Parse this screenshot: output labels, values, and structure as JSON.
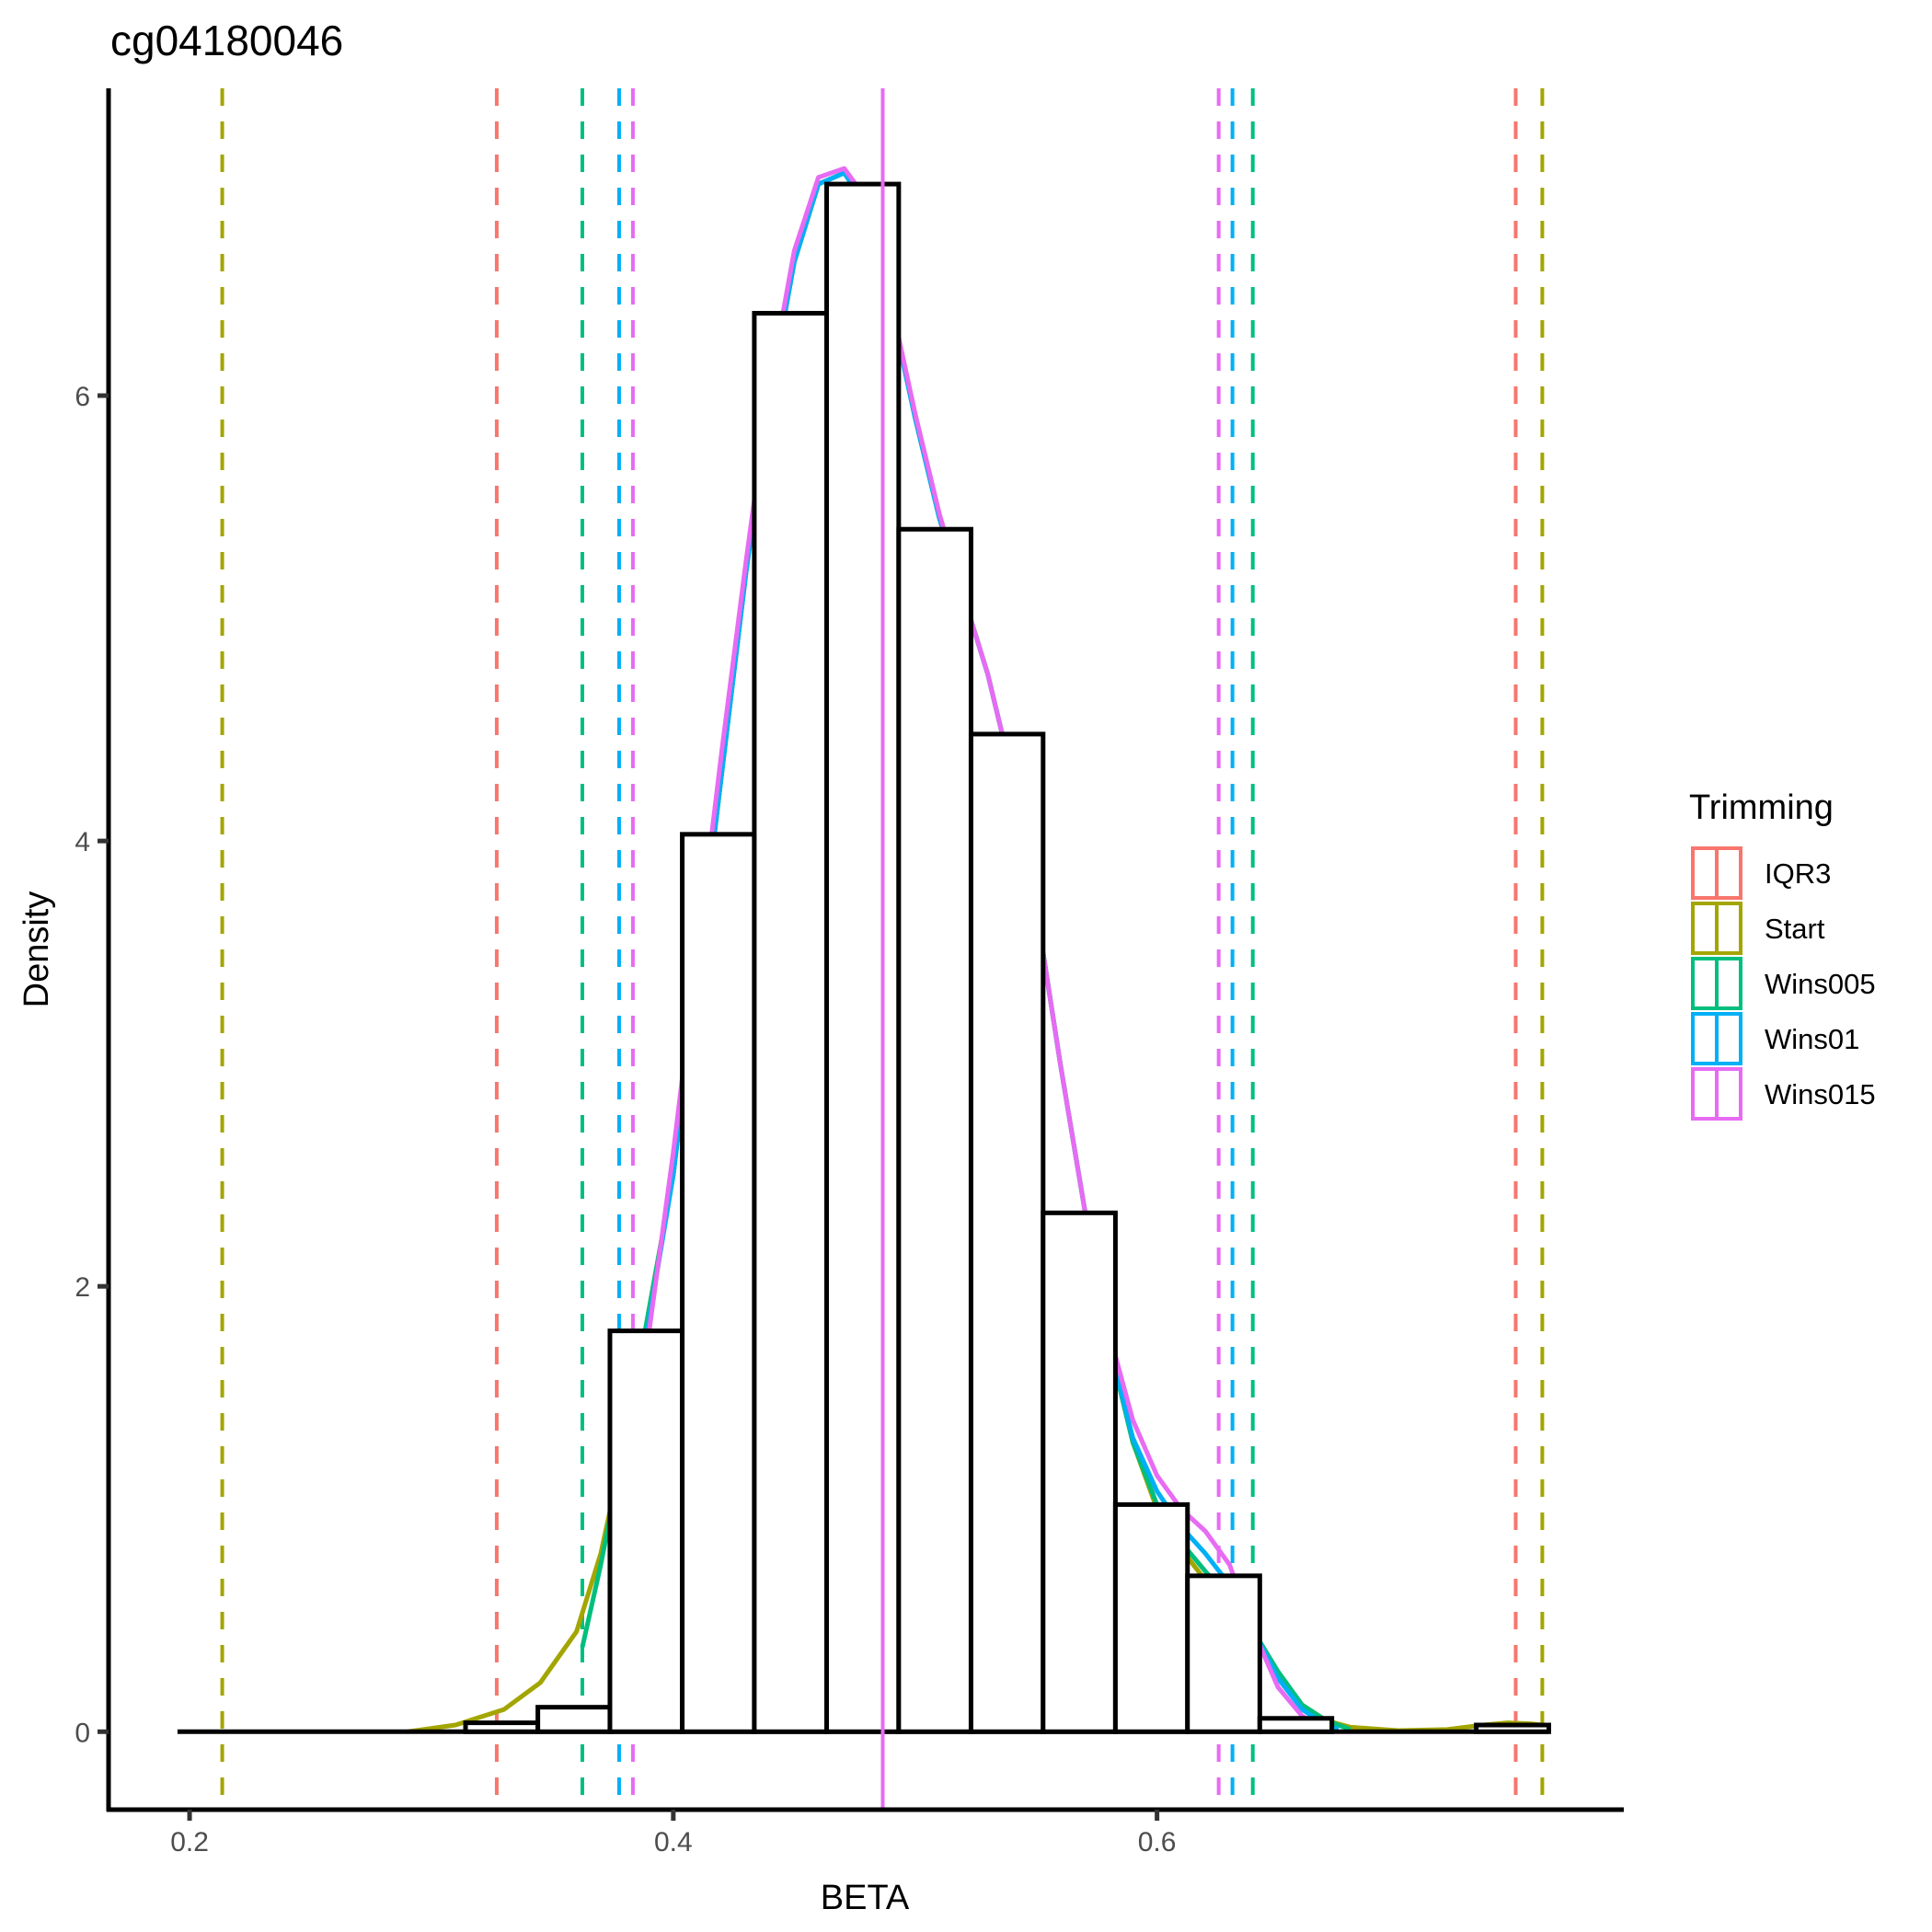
{
  "chart_data": {
    "type": "histogram",
    "title": "cg04180046",
    "xlabel": "BETA",
    "ylabel": "Density",
    "xlim": [
      0.1665,
      0.793
    ],
    "ylim": [
      -0.35,
      7.38
    ],
    "x_ticks": [
      0.2,
      0.4,
      0.6
    ],
    "x_tick_labels": [
      "0.2",
      "0.4",
      "0.6"
    ],
    "y_ticks": [
      0,
      2,
      4,
      6
    ],
    "y_tick_labels": [
      "0",
      "2",
      "4",
      "6"
    ],
    "grid": false,
    "histogram": {
      "bin_width": 0.02985,
      "baseline_range": [
        0.195,
        0.762
      ],
      "bins": [
        {
          "x0": 0.3141,
          "x1": 0.344,
          "density": 0.04
        },
        {
          "x0": 0.344,
          "x1": 0.3738,
          "density": 0.11
        },
        {
          "x0": 0.3738,
          "x1": 0.4037,
          "density": 1.8
        },
        {
          "x0": 0.4037,
          "x1": 0.4335,
          "density": 4.03
        },
        {
          "x0": 0.4335,
          "x1": 0.4634,
          "density": 6.37
        },
        {
          "x0": 0.4634,
          "x1": 0.4932,
          "density": 6.95
        },
        {
          "x0": 0.4932,
          "x1": 0.5231,
          "density": 5.4
        },
        {
          "x0": 0.5231,
          "x1": 0.5529,
          "density": 4.48
        },
        {
          "x0": 0.5529,
          "x1": 0.5828,
          "density": 2.33
        },
        {
          "x0": 0.5828,
          "x1": 0.6126,
          "density": 1.02
        },
        {
          "x0": 0.6126,
          "x1": 0.6425,
          "density": 0.7
        },
        {
          "x0": 0.6425,
          "x1": 0.6723,
          "density": 0.06
        },
        {
          "x0": 0.732,
          "x1": 0.762,
          "density": 0.03
        }
      ]
    },
    "legend": {
      "title": "Trimming",
      "position": "right",
      "entries": [
        {
          "name": "IQR3",
          "color": "#F8766D"
        },
        {
          "name": "Start",
          "color": "#A3A500"
        },
        {
          "name": "Wins005",
          "color": "#00BF7D"
        },
        {
          "name": "Wins01",
          "color": "#00B0F6"
        },
        {
          "name": "Wins015",
          "color": "#E76BF3"
        }
      ]
    },
    "series": [
      {
        "name": "Start",
        "color": "#A3A500",
        "cutoffs": [
          0.2135,
          0.7593
        ],
        "density": [
          [
            0.29,
            0
          ],
          [
            0.31,
            0.03
          ],
          [
            0.33,
            0.1
          ],
          [
            0.345,
            0.22
          ],
          [
            0.36,
            0.45
          ],
          [
            0.37,
            0.8
          ],
          [
            0.38,
            1.3
          ],
          [
            0.39,
            1.9
          ],
          [
            0.4,
            2.5
          ],
          [
            0.41,
            3.4
          ],
          [
            0.42,
            4.3
          ],
          [
            0.43,
            5.2
          ],
          [
            0.44,
            6.0
          ],
          [
            0.45,
            6.6
          ],
          [
            0.46,
            6.95
          ],
          [
            0.4707,
            7.0
          ],
          [
            0.48,
            6.85
          ],
          [
            0.49,
            6.4
          ],
          [
            0.5,
            5.9
          ],
          [
            0.51,
            5.45
          ],
          [
            0.52,
            5.1
          ],
          [
            0.53,
            4.75
          ],
          [
            0.54,
            4.3
          ],
          [
            0.55,
            3.7
          ],
          [
            0.56,
            3.0
          ],
          [
            0.57,
            2.35
          ],
          [
            0.58,
            1.75
          ],
          [
            0.59,
            1.3
          ],
          [
            0.6,
            1.0
          ],
          [
            0.61,
            0.82
          ],
          [
            0.62,
            0.68
          ],
          [
            0.63,
            0.55
          ],
          [
            0.64,
            0.42
          ],
          [
            0.65,
            0.25
          ],
          [
            0.66,
            0.12
          ],
          [
            0.67,
            0.05
          ],
          [
            0.68,
            0.02
          ],
          [
            0.7,
            0.005
          ],
          [
            0.72,
            0.01
          ],
          [
            0.735,
            0.03
          ],
          [
            0.745,
            0.04
          ],
          [
            0.755,
            0.035
          ],
          [
            0.7593,
            0.03
          ]
        ]
      },
      {
        "name": "Wins005",
        "color": "#00BF7D",
        "cutoffs": [
          0.3624,
          0.6396
        ],
        "density": [
          [
            0.3624,
            0.38
          ],
          [
            0.37,
            0.75
          ],
          [
            0.38,
            1.3
          ],
          [
            0.39,
            1.9
          ],
          [
            0.4,
            2.5
          ],
          [
            0.41,
            3.4
          ],
          [
            0.42,
            4.3
          ],
          [
            0.43,
            5.2
          ],
          [
            0.44,
            6.0
          ],
          [
            0.45,
            6.6
          ],
          [
            0.46,
            6.95
          ],
          [
            0.4707,
            7.0
          ],
          [
            0.48,
            6.85
          ],
          [
            0.49,
            6.4
          ],
          [
            0.5,
            5.9
          ],
          [
            0.51,
            5.45
          ],
          [
            0.52,
            5.1
          ],
          [
            0.53,
            4.75
          ],
          [
            0.54,
            4.3
          ],
          [
            0.55,
            3.7
          ],
          [
            0.56,
            3.0
          ],
          [
            0.57,
            2.35
          ],
          [
            0.58,
            1.75
          ],
          [
            0.59,
            1.3
          ],
          [
            0.6,
            1.02
          ],
          [
            0.61,
            0.85
          ],
          [
            0.62,
            0.72
          ],
          [
            0.63,
            0.6
          ],
          [
            0.64,
            0.45
          ],
          [
            0.65,
            0.27
          ],
          [
            0.66,
            0.12
          ],
          [
            0.67,
            0.05
          ],
          [
            0.68,
            0.01
          ]
        ]
      },
      {
        "name": "Wins01",
        "color": "#00B0F6",
        "cutoffs": [
          0.3776,
          0.6312
        ],
        "density": [
          [
            0.3776,
            0.9
          ],
          [
            0.38,
            1.2
          ],
          [
            0.39,
            1.85
          ],
          [
            0.4,
            2.5
          ],
          [
            0.41,
            3.4
          ],
          [
            0.42,
            4.3
          ],
          [
            0.43,
            5.2
          ],
          [
            0.44,
            6.0
          ],
          [
            0.45,
            6.6
          ],
          [
            0.46,
            6.95
          ],
          [
            0.4707,
            7.0
          ],
          [
            0.48,
            6.85
          ],
          [
            0.49,
            6.4
          ],
          [
            0.5,
            5.9
          ],
          [
            0.51,
            5.45
          ],
          [
            0.52,
            5.1
          ],
          [
            0.53,
            4.75
          ],
          [
            0.54,
            4.3
          ],
          [
            0.55,
            3.7
          ],
          [
            0.56,
            3.0
          ],
          [
            0.57,
            2.35
          ],
          [
            0.58,
            1.75
          ],
          [
            0.59,
            1.32
          ],
          [
            0.6,
            1.08
          ],
          [
            0.61,
            0.92
          ],
          [
            0.62,
            0.8
          ],
          [
            0.63,
            0.66
          ],
          [
            0.64,
            0.45
          ],
          [
            0.65,
            0.24
          ],
          [
            0.66,
            0.1
          ],
          [
            0.67,
            0.03
          ],
          [
            0.675,
            0.01
          ]
        ]
      },
      {
        "name": "Wins015",
        "color": "#E76BF3",
        "cutoffs": [
          0.3833,
          0.6255
        ],
        "density": [
          [
            0.3833,
            1.3
          ],
          [
            0.39,
            1.8
          ],
          [
            0.4,
            2.6
          ],
          [
            0.41,
            3.5
          ],
          [
            0.42,
            4.4
          ],
          [
            0.43,
            5.25
          ],
          [
            0.44,
            6.05
          ],
          [
            0.45,
            6.65
          ],
          [
            0.46,
            6.98
          ],
          [
            0.4707,
            7.02
          ],
          [
            0.48,
            6.88
          ],
          [
            0.49,
            6.42
          ],
          [
            0.5,
            5.92
          ],
          [
            0.51,
            5.47
          ],
          [
            0.52,
            5.1
          ],
          [
            0.53,
            4.75
          ],
          [
            0.54,
            4.3
          ],
          [
            0.55,
            3.7
          ],
          [
            0.56,
            3.0
          ],
          [
            0.57,
            2.35
          ],
          [
            0.58,
            1.8
          ],
          [
            0.59,
            1.4
          ],
          [
            0.6,
            1.15
          ],
          [
            0.61,
            1.0
          ],
          [
            0.62,
            0.9
          ],
          [
            0.63,
            0.75
          ],
          [
            0.64,
            0.45
          ],
          [
            0.65,
            0.2
          ],
          [
            0.66,
            0.07
          ],
          [
            0.67,
            0.01
          ]
        ]
      },
      {
        "name": "IQR3",
        "color": "#F8766D",
        "cutoffs": [
          0.327,
          0.7483
        ],
        "density": []
      }
    ],
    "mean_line": {
      "x": 0.4866,
      "color": "#E76BF3",
      "style": "solid"
    }
  }
}
